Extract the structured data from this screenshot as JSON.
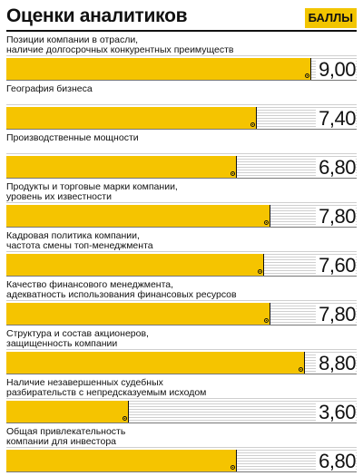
{
  "title": "Оценки аналитиков",
  "badge": "БАЛЛЫ",
  "chart_data": {
    "type": "bar",
    "orientation": "horizontal",
    "title": "Оценки аналитиков",
    "unit": "БАЛЛЫ",
    "xlim": [
      0,
      10
    ],
    "colors": {
      "bar": "#f5c400",
      "badge": "#f2c500"
    },
    "categories": [
      [
        "Позиции компании в отрасли,",
        "наличие долгосрочных конкурентных преимуществ"
      ],
      [
        "География бизнеса"
      ],
      [
        "Производственные мощности"
      ],
      [
        "Продукты и торговые марки компании,",
        "уровень их известности"
      ],
      [
        "Кадровая политика компании,",
        "частота смены топ-менеджмента"
      ],
      [
        "Качество финансового менеджмента,",
        "адекватность использования финансовых ресурсов"
      ],
      [
        "Структура и состав акционеров,",
        "защищенность компании"
      ],
      [
        "Наличие незавершенных судебных",
        "разбирательств с непредсказуемым исходом"
      ],
      [
        "Общая привлекательность",
        "компании для инвестора"
      ]
    ],
    "values": [
      9.0,
      7.4,
      6.8,
      7.8,
      7.6,
      7.8,
      8.8,
      3.6,
      6.8
    ],
    "value_labels": [
      "9,00",
      "7,40",
      "6,80",
      "7,80",
      "7,60",
      "7,80",
      "8,80",
      "3,60",
      "6,80"
    ]
  }
}
